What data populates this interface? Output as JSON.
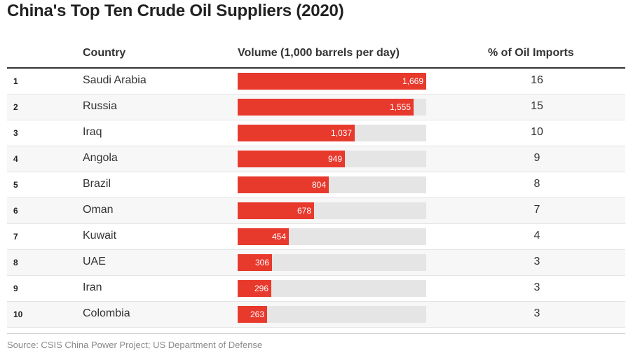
{
  "title": "China's Top Ten Crude Oil Suppliers (2020)",
  "headers": {
    "country": "Country",
    "volume": "Volume (1,000 barrels per day)",
    "pct": "% of Oil Imports"
  },
  "source": "Source: CSIS China Power Project; US Department of Defense",
  "colors": {
    "bar": "#e8392d",
    "track": "#e5e5e5"
  },
  "chart_data": {
    "type": "table",
    "title": "China's Top Ten Crude Oil Suppliers (2020)",
    "columns": [
      "",
      "Country",
      "Volume (1,000 barrels per day)",
      "% of Oil Imports"
    ],
    "value_max": 1669,
    "rows": [
      {
        "rank": "1",
        "country": "Saudi Arabia",
        "volume": 1669,
        "volume_label": "1,669",
        "pct": "16"
      },
      {
        "rank": "2",
        "country": "Russia",
        "volume": 1555,
        "volume_label": "1,555",
        "pct": "15"
      },
      {
        "rank": "3",
        "country": "Iraq",
        "volume": 1037,
        "volume_label": "1,037",
        "pct": "10"
      },
      {
        "rank": "4",
        "country": "Angola",
        "volume": 949,
        "volume_label": "949",
        "pct": "9"
      },
      {
        "rank": "5",
        "country": "Brazil",
        "volume": 804,
        "volume_label": "804",
        "pct": "8"
      },
      {
        "rank": "6",
        "country": "Oman",
        "volume": 678,
        "volume_label": "678",
        "pct": "7"
      },
      {
        "rank": "7",
        "country": "Kuwait",
        "volume": 454,
        "volume_label": "454",
        "pct": "4"
      },
      {
        "rank": "8",
        "country": "UAE",
        "volume": 306,
        "volume_label": "306",
        "pct": "3"
      },
      {
        "rank": "9",
        "country": "Iran",
        "volume": 296,
        "volume_label": "296",
        "pct": "3"
      },
      {
        "rank": "10",
        "country": "Colombia",
        "volume": 263,
        "volume_label": "263",
        "pct": "3"
      }
    ]
  }
}
